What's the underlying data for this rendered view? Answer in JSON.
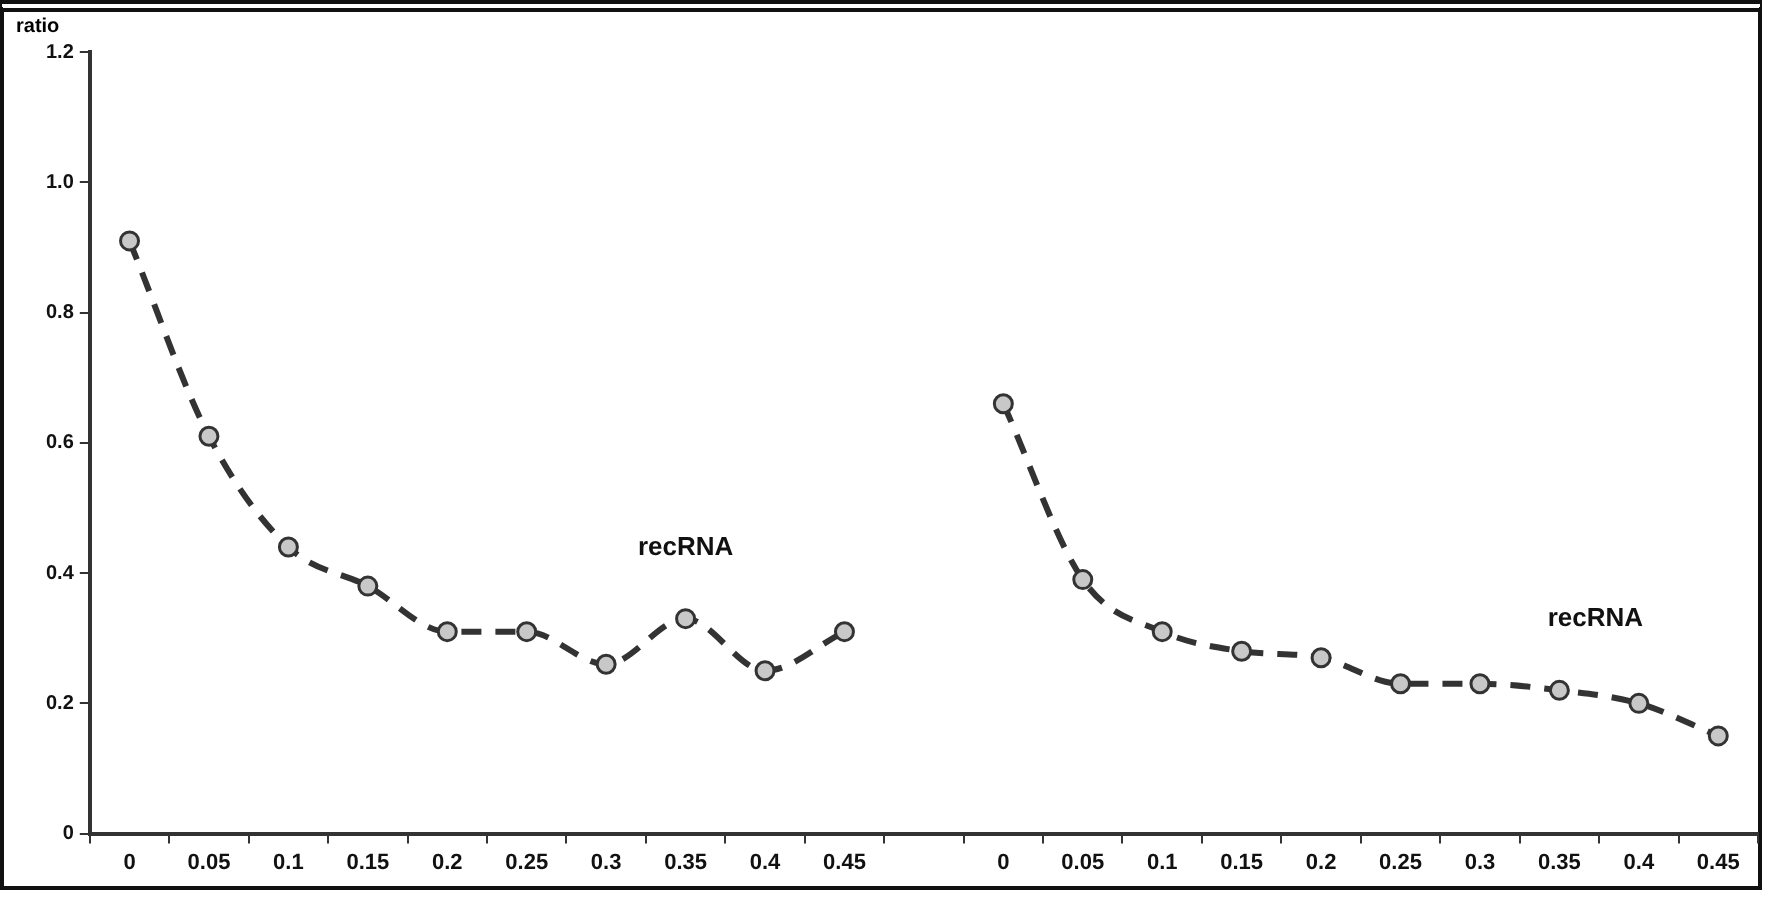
{
  "chart_data": {
    "type": "line",
    "ylabel": "ratio",
    "categories": [
      "0",
      "0.05",
      "0.1",
      "0.15",
      "0.2",
      "0.25",
      "0.3",
      "0.35",
      "0.4",
      "0.45",
      null,
      "0",
      "0.05",
      "0.1",
      "0.15",
      "0.2",
      "0.25",
      "0.3",
      "0.35",
      "0.4",
      "0.45"
    ],
    "series": [
      {
        "name": "recRNA",
        "color": "#333333",
        "values": [
          0.91,
          0.61,
          0.44,
          0.38,
          0.31,
          0.31,
          0.26,
          0.33,
          0.25,
          0.31,
          null,
          null,
          null,
          null,
          null,
          null,
          null,
          null,
          null,
          null,
          null
        ]
      },
      {
        "name": "recRNA",
        "color": "#333333",
        "values": [
          null,
          null,
          null,
          null,
          null,
          null,
          null,
          null,
          null,
          null,
          null,
          0.66,
          0.39,
          0.31,
          0.28,
          0.27,
          0.23,
          0.23,
          0.22,
          0.2,
          0.15
        ]
      }
    ],
    "ylim": [
      0,
      1.2
    ],
    "yticks": [
      0,
      {
        "value": 0.2,
        "label": "0.2"
      },
      {
        "value": 0.4,
        "label": "0.4"
      },
      {
        "value": 0.6,
        "label": "0.6"
      },
      {
        "value": 0.8,
        "label": "0.8"
      },
      {
        "value": 1,
        "label": "1.0"
      },
      {
        "value": 1.2,
        "label": "1.2"
      }
    ],
    "grid": false,
    "legend": false,
    "marker": "circle",
    "line_style": "dashed"
  }
}
